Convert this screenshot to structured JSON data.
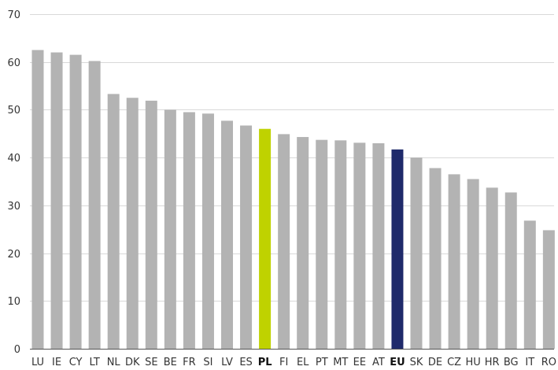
{
  "chart_data": {
    "type": "bar",
    "title": "",
    "xlabel": "",
    "ylabel": "",
    "ylim": [
      0,
      70
    ],
    "yticks": [
      0,
      10,
      20,
      30,
      40,
      50,
      60,
      70
    ],
    "grid": true,
    "categories": [
      "LU",
      "IE",
      "CY",
      "LT",
      "NL",
      "DK",
      "SE",
      "BE",
      "FR",
      "SI",
      "LV",
      "ES",
      "PL",
      "FI",
      "EL",
      "PT",
      "MT",
      "EE",
      "AT",
      "EU",
      "SK",
      "DE",
      "CZ",
      "HU",
      "HR",
      "BG",
      "IT",
      "RO"
    ],
    "values": [
      62.5,
      62.0,
      61.5,
      60.2,
      53.3,
      52.5,
      51.9,
      50.0,
      49.5,
      49.2,
      47.7,
      46.7,
      46.0,
      44.9,
      44.3,
      43.7,
      43.6,
      43.1,
      43.0,
      41.7,
      40.0,
      37.8,
      36.5,
      35.5,
      33.7,
      32.7,
      26.8,
      24.8
    ],
    "highlights": {
      "PL": "#bfd200",
      "EU": "#1f2a6b"
    },
    "bold_categories": [
      "PL",
      "EU"
    ],
    "colors": {
      "default_bar": "#b3b3b3",
      "grid": "#d9d9d9",
      "axis": "#555555",
      "text": "#333333"
    }
  }
}
